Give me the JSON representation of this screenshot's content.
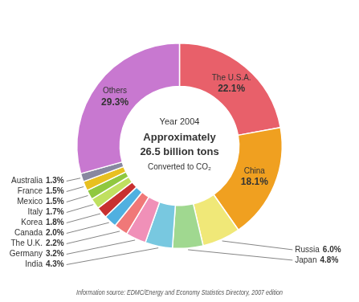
{
  "chart_data": {
    "type": "doughnut",
    "title": "Year 2004",
    "annotations": [
      "Approximately",
      "26.5 billion tons",
      "Converted to CO₂"
    ],
    "footer": "Information source: EDMC/Energy and Economy Statistics Directory, 2007 edition",
    "categories": [
      "The U.S.A.",
      "China",
      "Russia",
      "Japan",
      "India",
      "Germany",
      "The U.K.",
      "Canada",
      "Korea",
      "Italy",
      "Mexico",
      "France",
      "Australia",
      "Others"
    ],
    "values": [
      22.1,
      18.1,
      6.0,
      4.8,
      4.3,
      3.2,
      2.2,
      2.0,
      1.8,
      1.7,
      1.5,
      1.5,
      1.3,
      29.3
    ],
    "value_labels": [
      "22.1%",
      "18.1%",
      "6.0%",
      "4.8%",
      "4.3%",
      "3.2%",
      "2.2%",
      "2.0%",
      "1.8%",
      "1.7%",
      "1.5%",
      "1.5%",
      "1.3%",
      "29.3%"
    ],
    "colors": [
      "#e8606a",
      "#f0a020",
      "#f0e878",
      "#a0d890",
      "#78c8e0",
      "#f090b8",
      "#f07878",
      "#50b0e0",
      "#c83030",
      "#c0e060",
      "#90c840",
      "#e8c020",
      "#8888a0",
      "#c878d0"
    ],
    "data_labels": true,
    "legend": false
  }
}
